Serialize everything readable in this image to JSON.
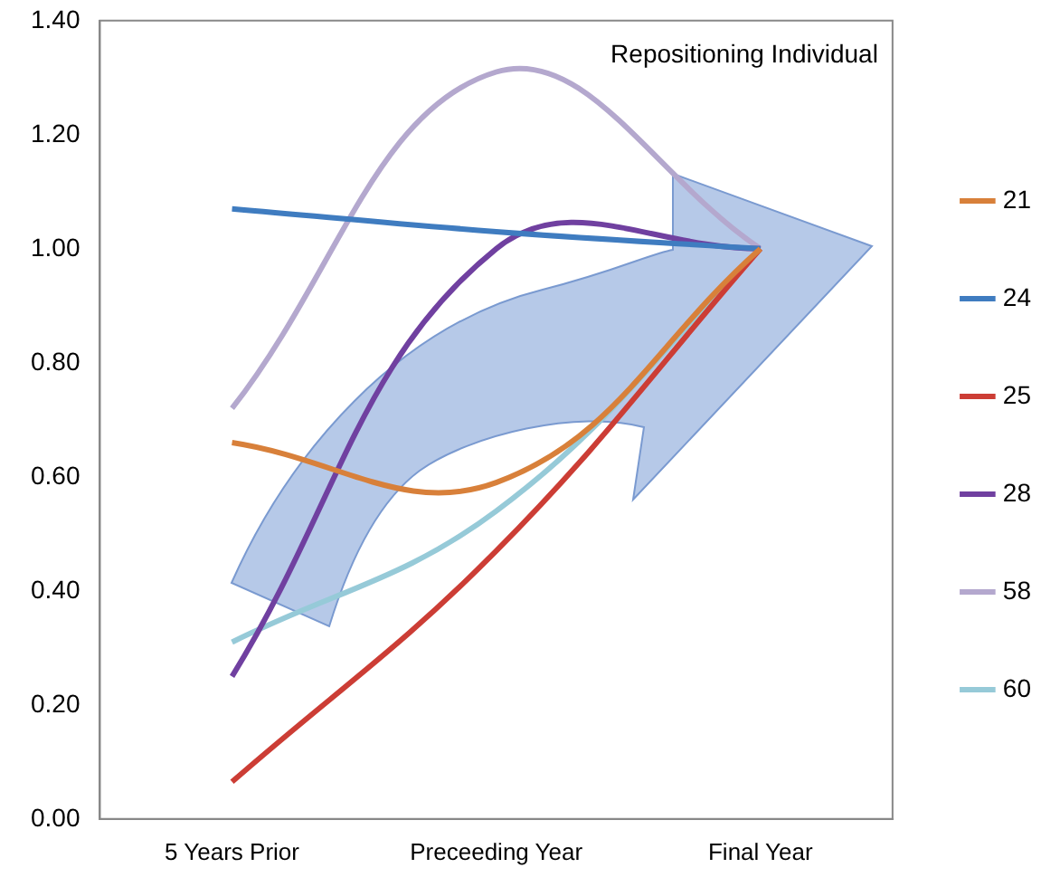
{
  "chart_data": {
    "type": "line",
    "categories": [
      "5 Years Prior",
      "Preceeding Year",
      "Final Year"
    ],
    "series": [
      {
        "name": "21",
        "color": "#d8803a",
        "values": [
          0.66,
          0.59,
          1.0
        ]
      },
      {
        "name": "24",
        "color": "#3f7cc0",
        "values": [
          1.07,
          1.03,
          1.0
        ]
      },
      {
        "name": "25",
        "color": "#cc3d35",
        "values": [
          0.065,
          0.47,
          1.0
        ]
      },
      {
        "name": "28",
        "color": "#7040a0",
        "values": [
          0.25,
          1.0,
          1.0
        ]
      },
      {
        "name": "58",
        "color": "#b4a8ce",
        "values": [
          0.72,
          1.31,
          1.0
        ]
      },
      {
        "name": "60",
        "color": "#96cad8",
        "values": [
          0.31,
          0.54,
          1.0
        ]
      }
    ],
    "ylim": [
      0,
      1.4
    ],
    "yticks": [
      {
        "value": 0,
        "label": "0.00"
      },
      {
        "value": 0.2,
        "label": "0.20"
      },
      {
        "value": 0.4,
        "label": "0.40"
      },
      {
        "value": 0.6,
        "label": "0.60"
      },
      {
        "value": 0.8,
        "label": "0.80"
      },
      {
        "value": 1.0,
        "label": "1.00"
      },
      {
        "value": 1.2,
        "label": "1.20"
      },
      {
        "value": 1.4,
        "label": "1.40"
      }
    ],
    "grid": false,
    "legend": "right",
    "marker": "none",
    "line_style": "solid",
    "annotations": [
      "Repositioning Individual"
    ]
  }
}
